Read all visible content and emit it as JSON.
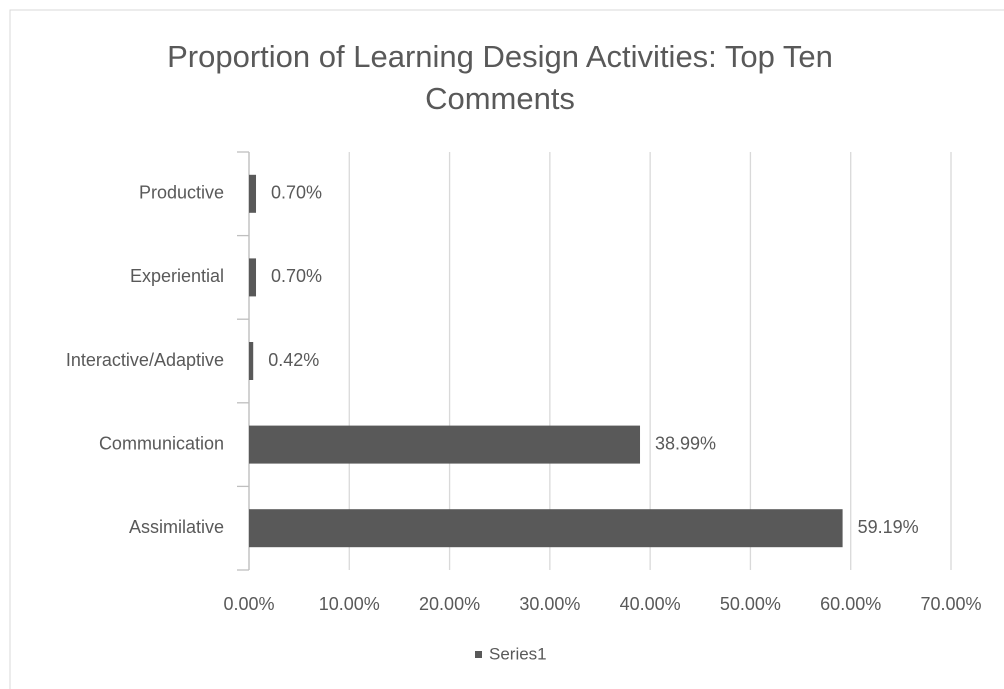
{
  "chart_data": {
    "type": "bar",
    "orientation": "horizontal",
    "title": "Proportion of Learning Design Activities: Top Ten Comments",
    "categories": [
      "Assimilative",
      "Communication",
      "Interactive/Adaptive",
      "Experiential",
      "Productive"
    ],
    "series": [
      {
        "name": "Series1",
        "color": "#595959",
        "values": [
          59.19,
          38.99,
          0.42,
          0.7,
          0.7
        ],
        "value_labels": [
          "59.19%",
          "38.99%",
          "0.42%",
          "0.70%",
          "0.70%"
        ]
      }
    ],
    "xlim": [
      0,
      70
    ],
    "xticks": [
      {
        "value": 0,
        "label": "0.00%"
      },
      {
        "value": 10,
        "label": "10.00%"
      },
      {
        "value": 20,
        "label": "20.00%"
      },
      {
        "value": 30,
        "label": "30.00%"
      },
      {
        "value": 40,
        "label": "40.00%"
      },
      {
        "value": 50,
        "label": "50.00%"
      },
      {
        "value": 60,
        "label": "60.00%"
      },
      {
        "value": 70,
        "label": "70.00%"
      }
    ],
    "grid": true,
    "legend": "bottom"
  }
}
